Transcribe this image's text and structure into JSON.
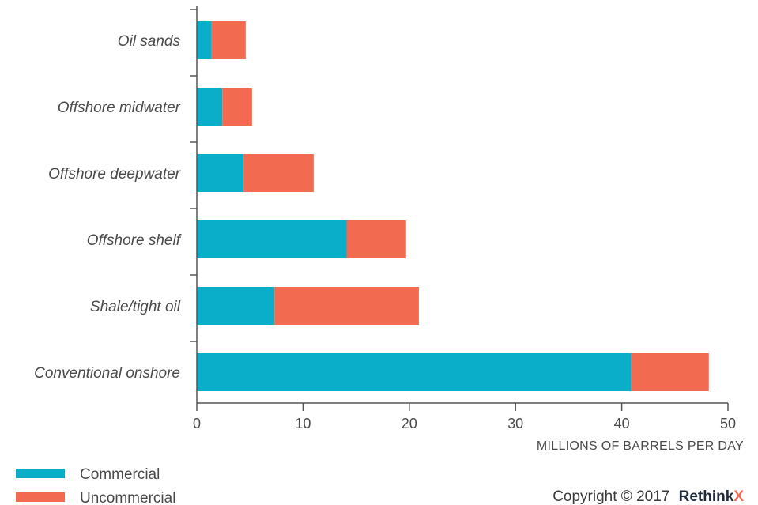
{
  "chart_data": {
    "type": "bar",
    "orientation": "horizontal",
    "stacked": true,
    "categories": [
      "Oil sands",
      "Offshore midwater",
      "Offshore deepwater",
      "Offshore shelf",
      "Shale/tight oil",
      "Conventional onshore"
    ],
    "series": [
      {
        "name": "Commercial",
        "color": "#0aaec9",
        "values": [
          1.4,
          2.4,
          4.4,
          14.1,
          7.3,
          40.9
        ]
      },
      {
        "name": "Uncommercial",
        "color": "#f26a50",
        "values": [
          3.2,
          2.8,
          6.6,
          5.6,
          13.6,
          7.3
        ]
      }
    ],
    "xlabel": "MILLIONS OF BARRELS PER DAY",
    "xlim": [
      0,
      50
    ],
    "xticks": [
      0,
      10,
      20,
      30,
      40,
      50
    ],
    "legend_position": "bottom-left",
    "grid": false
  },
  "footer": {
    "copyright": "Copyright © 2017",
    "brand": "Rethink",
    "brand_x": "X",
    "brand_color": "#1d2b3a",
    "brand_x_color": "#f26a50"
  }
}
